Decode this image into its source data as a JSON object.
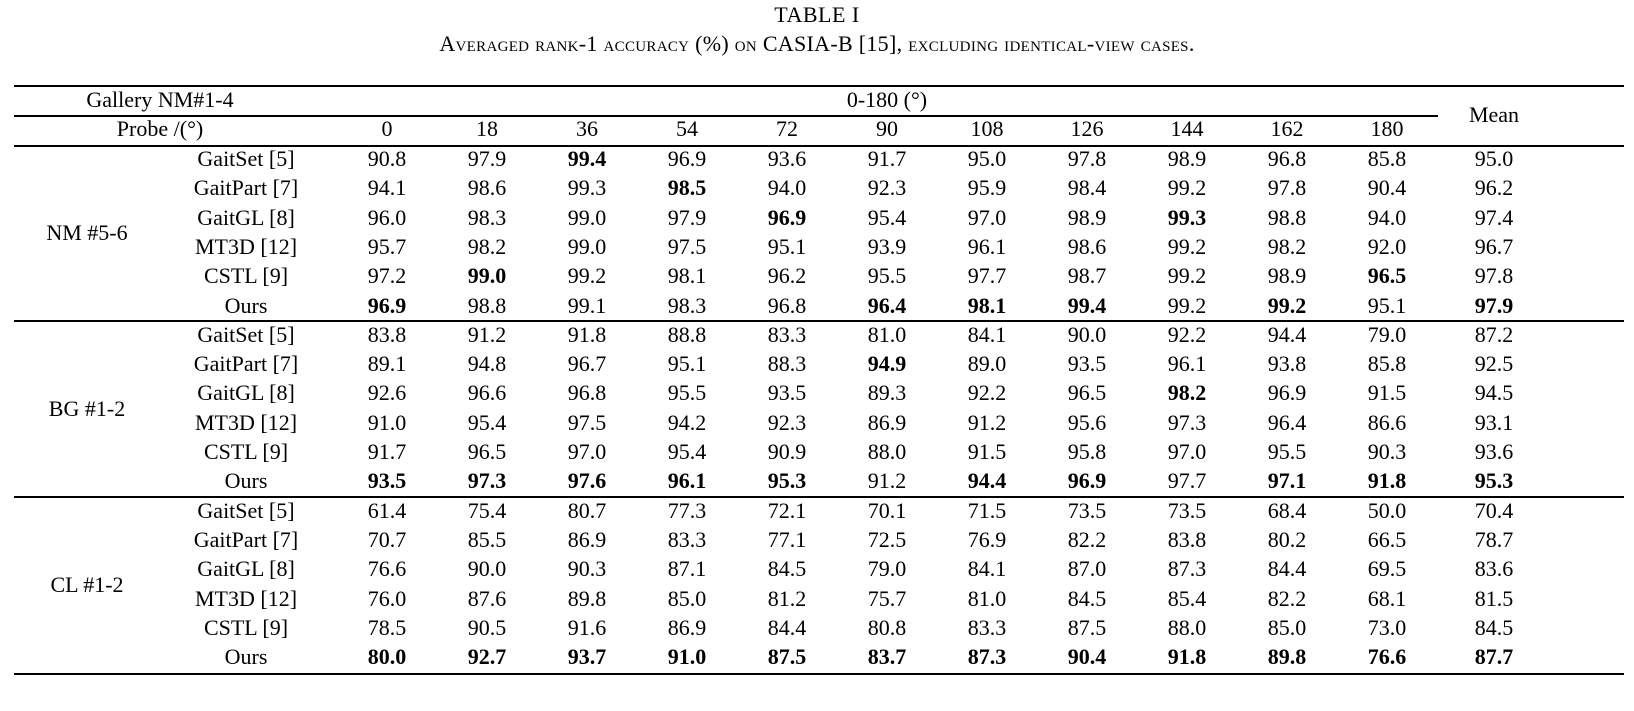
{
  "caption": {
    "label": "TABLE I",
    "text": "Averaged rank-1 accuracy (%) on CASIA-B [15], excluding identical-view cases."
  },
  "header": {
    "gallery_label": "Gallery NM#1-4",
    "range_label": "0-180 (°)",
    "probe_label": "Probe /(°)",
    "mean_label": "Mean",
    "angles": [
      "0",
      "18",
      "36",
      "54",
      "72",
      "90",
      "108",
      "126",
      "144",
      "162",
      "180"
    ]
  },
  "groups": [
    {
      "condition": "NM #5-6",
      "rows": [
        {
          "method": "GaitSet [5]",
          "values": [
            "90.8",
            "97.9",
            "99.4",
            "96.9",
            "93.6",
            "91.7",
            "95.0",
            "97.8",
            "98.9",
            "96.8",
            "85.8"
          ],
          "mean": "95.0",
          "bold": [
            2
          ]
        },
        {
          "method": "GaitPart [7]",
          "values": [
            "94.1",
            "98.6",
            "99.3",
            "98.5",
            "94.0",
            "92.3",
            "95.9",
            "98.4",
            "99.2",
            "97.8",
            "90.4"
          ],
          "mean": "96.2",
          "bold": [
            3
          ]
        },
        {
          "method": "GaitGL [8]",
          "values": [
            "96.0",
            "98.3",
            "99.0",
            "97.9",
            "96.9",
            "95.4",
            "97.0",
            "98.9",
            "99.3",
            "98.8",
            "94.0"
          ],
          "mean": "97.4",
          "bold": [
            4,
            8
          ]
        },
        {
          "method": "MT3D [12]",
          "values": [
            "95.7",
            "98.2",
            "99.0",
            "97.5",
            "95.1",
            "93.9",
            "96.1",
            "98.6",
            "99.2",
            "98.2",
            "92.0"
          ],
          "mean": "96.7",
          "bold": []
        },
        {
          "method": "CSTL [9]",
          "values": [
            "97.2",
            "99.0",
            "99.2",
            "98.1",
            "96.2",
            "95.5",
            "97.7",
            "98.7",
            "99.2",
            "98.9",
            "96.5"
          ],
          "mean": "97.8",
          "bold": [
            1,
            10
          ]
        },
        {
          "method": "Ours",
          "values": [
            "96.9",
            "98.8",
            "99.1",
            "98.3",
            "96.8",
            "96.4",
            "98.1",
            "99.4",
            "99.2",
            "99.2",
            "95.1"
          ],
          "mean": "97.9",
          "bold": [
            0,
            5,
            6,
            7,
            9,
            11
          ]
        }
      ]
    },
    {
      "condition": "BG #1-2",
      "rows": [
        {
          "method": "GaitSet [5]",
          "values": [
            "83.8",
            "91.2",
            "91.8",
            "88.8",
            "83.3",
            "81.0",
            "84.1",
            "90.0",
            "92.2",
            "94.4",
            "79.0"
          ],
          "mean": "87.2",
          "bold": []
        },
        {
          "method": "GaitPart [7]",
          "values": [
            "89.1",
            "94.8",
            "96.7",
            "95.1",
            "88.3",
            "94.9",
            "89.0",
            "93.5",
            "96.1",
            "93.8",
            "85.8"
          ],
          "mean": "92.5",
          "bold": [
            5
          ]
        },
        {
          "method": "GaitGL [8]",
          "values": [
            "92.6",
            "96.6",
            "96.8",
            "95.5",
            "93.5",
            "89.3",
            "92.2",
            "96.5",
            "98.2",
            "96.9",
            "91.5"
          ],
          "mean": "94.5",
          "bold": [
            8
          ]
        },
        {
          "method": "MT3D [12]",
          "values": [
            "91.0",
            "95.4",
            "97.5",
            "94.2",
            "92.3",
            "86.9",
            "91.2",
            "95.6",
            "97.3",
            "96.4",
            "86.6"
          ],
          "mean": "93.1",
          "bold": []
        },
        {
          "method": "CSTL [9]",
          "values": [
            "91.7",
            "96.5",
            "97.0",
            "95.4",
            "90.9",
            "88.0",
            "91.5",
            "95.8",
            "97.0",
            "95.5",
            "90.3"
          ],
          "mean": "93.6",
          "bold": []
        },
        {
          "method": "Ours",
          "values": [
            "93.5",
            "97.3",
            "97.6",
            "96.1",
            "95.3",
            "91.2",
            "94.4",
            "96.9",
            "97.7",
            "97.1",
            "91.8"
          ],
          "mean": "95.3",
          "bold": [
            0,
            1,
            2,
            3,
            4,
            6,
            7,
            9,
            10,
            11
          ]
        }
      ]
    },
    {
      "condition": "CL #1-2",
      "rows": [
        {
          "method": "GaitSet [5]",
          "values": [
            "61.4",
            "75.4",
            "80.7",
            "77.3",
            "72.1",
            "70.1",
            "71.5",
            "73.5",
            "73.5",
            "68.4",
            "50.0"
          ],
          "mean": "70.4",
          "bold": []
        },
        {
          "method": "GaitPart [7]",
          "values": [
            "70.7",
            "85.5",
            "86.9",
            "83.3",
            "77.1",
            "72.5",
            "76.9",
            "82.2",
            "83.8",
            "80.2",
            "66.5"
          ],
          "mean": "78.7",
          "bold": []
        },
        {
          "method": "GaitGL [8]",
          "values": [
            "76.6",
            "90.0",
            "90.3",
            "87.1",
            "84.5",
            "79.0",
            "84.1",
            "87.0",
            "87.3",
            "84.4",
            "69.5"
          ],
          "mean": "83.6",
          "bold": []
        },
        {
          "method": "MT3D [12]",
          "values": [
            "76.0",
            "87.6",
            "89.8",
            "85.0",
            "81.2",
            "75.7",
            "81.0",
            "84.5",
            "85.4",
            "82.2",
            "68.1"
          ],
          "mean": "81.5",
          "bold": []
        },
        {
          "method": "CSTL [9]",
          "values": [
            "78.5",
            "90.5",
            "91.6",
            "86.9",
            "84.4",
            "80.8",
            "83.3",
            "87.5",
            "88.0",
            "85.0",
            "73.0"
          ],
          "mean": "84.5",
          "bold": []
        },
        {
          "method": "Ours",
          "values": [
            "80.0",
            "92.7",
            "93.7",
            "91.0",
            "87.5",
            "83.7",
            "87.3",
            "90.4",
            "91.8",
            "89.8",
            "76.6"
          ],
          "mean": "87.7",
          "bold": [
            0,
            1,
            2,
            3,
            4,
            5,
            6,
            7,
            8,
            9,
            10,
            11
          ]
        }
      ]
    }
  ]
}
